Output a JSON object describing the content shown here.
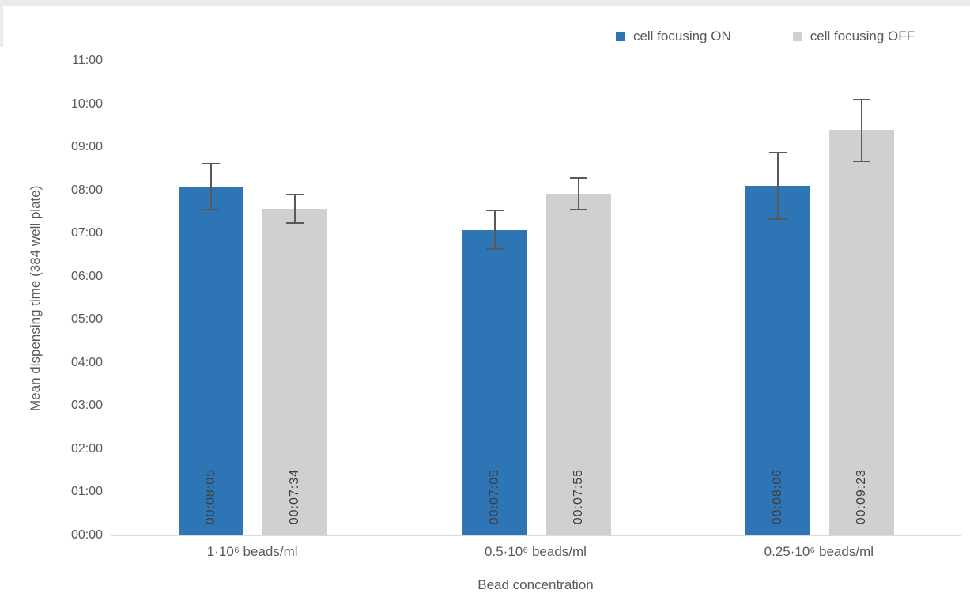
{
  "page": {
    "background": "#ffffff",
    "top_strip_color": "#ececec"
  },
  "chart_data": {
    "type": "bar",
    "title": "",
    "xlabel": "Bead concentration",
    "ylabel": "Mean dispensing time (384 well plate)",
    "categories": [
      "1·10⁶ beads/ml",
      "0.5·10⁶ beads/ml",
      "0.25·10⁶ beads/ml"
    ],
    "series": [
      {
        "name": "cell focusing ON",
        "color": "#2e75b6",
        "bar_labels": [
          "00:08:05",
          "00:07:05",
          "00:08:06"
        ],
        "values_seconds": [
          485,
          425,
          486
        ],
        "error_plus_minus_seconds": [
          33,
          28,
          47
        ]
      },
      {
        "name": "cell focusing OFF",
        "color": "#d1cfcf",
        "bar_labels": [
          "00:07:34",
          "00:07:55",
          "00:09:23"
        ],
        "values_seconds": [
          454,
          475,
          563
        ],
        "error_plus_minus_seconds": [
          21,
          23,
          44
        ]
      }
    ],
    "y_axis": {
      "min_seconds": 0,
      "max_seconds": 660,
      "tick_step_seconds": 60,
      "tick_labels": [
        "00:00",
        "01:00",
        "02:00",
        "03:00",
        "04:00",
        "05:00",
        "06:00",
        "07:00",
        "08:00",
        "09:00",
        "10:00",
        "11:00"
      ]
    },
    "legend_position": "top-right",
    "grid": false,
    "error_bars": true,
    "style": {
      "axis_line_color": "#d9d9d9",
      "axis_text_color": "#595959",
      "bar_label_color": "#404040",
      "error_bar_color": "#595959"
    }
  }
}
